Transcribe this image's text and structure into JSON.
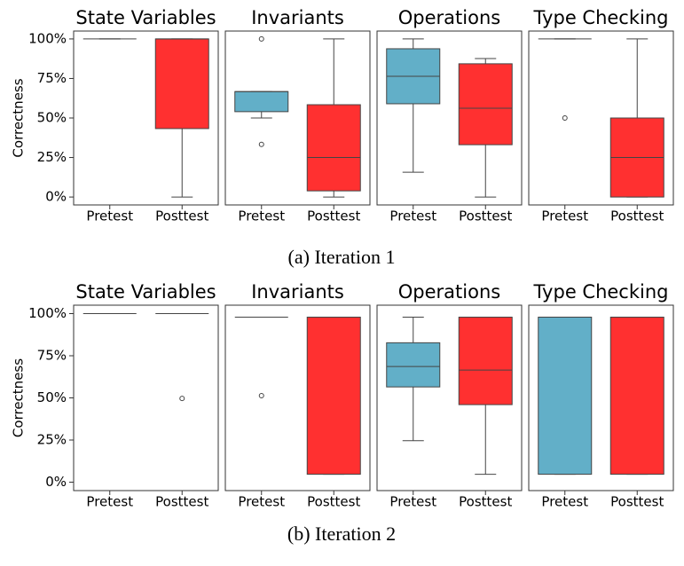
{
  "chart_data": [
    {
      "type": "box",
      "title": "State Variables",
      "ylabel": "Correctness",
      "categories": [
        "Pretest",
        "Posttest"
      ],
      "ylim": [
        -5,
        105
      ],
      "yticks": [
        {
          "value": 0,
          "label": "0%"
        },
        {
          "value": 25,
          "label": "25%"
        },
        {
          "value": 50,
          "label": "50%"
        },
        {
          "value": 75,
          "label": "75%"
        },
        {
          "value": 100,
          "label": "100%"
        }
      ],
      "boxes": [
        {
          "color": "#62afc8",
          "min": 100,
          "q1": 100,
          "median": 100,
          "q3": 100,
          "max": 100,
          "outliers": []
        },
        {
          "color": "#ff3030",
          "min": 0,
          "q1": 43.3,
          "median": 100,
          "q3": 100,
          "max": 100,
          "outliers": []
        }
      ]
    },
    {
      "type": "box",
      "title": "Invariants",
      "categories": [
        "Pretest",
        "Posttest"
      ],
      "ylim": [
        -5,
        105
      ],
      "boxes": [
        {
          "color": "#62afc8",
          "min": 50,
          "q1": 54,
          "median": 66.7,
          "q3": 66.7,
          "max": 66.7,
          "outliers": [
            100,
            33.3
          ]
        },
        {
          "color": "#ff3030",
          "min": 0,
          "q1": 3.9,
          "median": 25,
          "q3": 58.4,
          "max": 100,
          "outliers": []
        }
      ]
    },
    {
      "type": "box",
      "title": "Operations",
      "categories": [
        "Pretest",
        "Posttest"
      ],
      "ylim": [
        -5,
        105
      ],
      "boxes": [
        {
          "color": "#62afc8",
          "min": 15.7,
          "q1": 59,
          "median": 76.4,
          "q3": 93.8,
          "max": 100,
          "outliers": []
        },
        {
          "color": "#ff3030",
          "min": 0,
          "q1": 33.1,
          "median": 56.2,
          "q3": 84.3,
          "max": 87.6,
          "outliers": []
        }
      ]
    },
    {
      "type": "box",
      "title": "Type Checking",
      "categories": [
        "Pretest",
        "Posttest"
      ],
      "ylim": [
        -5,
        105
      ],
      "boxes": [
        {
          "color": "#62afc8",
          "min": 100,
          "q1": 100,
          "median": 100,
          "q3": 100,
          "max": 100,
          "outliers": [
            50
          ]
        },
        {
          "color": "#ff3030",
          "min": 0,
          "q1": 0,
          "median": 25,
          "q3": 50,
          "max": 100,
          "outliers": []
        }
      ]
    },
    {
      "type": "box",
      "title": "State Variables",
      "ylabel": "Correctness",
      "categories": [
        "Pretest",
        "Posttest"
      ],
      "ylim": [
        -5,
        105
      ],
      "yticks": [
        {
          "value": 0,
          "label": "0%"
        },
        {
          "value": 25,
          "label": "25%"
        },
        {
          "value": 50,
          "label": "50%"
        },
        {
          "value": 75,
          "label": "75%"
        },
        {
          "value": 100,
          "label": "100%"
        }
      ],
      "boxes": [
        {
          "color": "#62afc8",
          "min": 100,
          "q1": 100,
          "median": 100,
          "q3": 100,
          "max": 100,
          "outliers": []
        },
        {
          "color": "#ff3030",
          "min": 100,
          "q1": 100,
          "median": 100,
          "q3": 100,
          "max": 100,
          "outliers": [
            49.7
          ]
        }
      ]
    },
    {
      "type": "box",
      "title": "Invariants",
      "categories": [
        "Pretest",
        "Posttest"
      ],
      "ylim": [
        -5,
        105
      ],
      "boxes": [
        {
          "color": "#62afc8",
          "min": 97.9,
          "q1": 97.9,
          "median": 97.9,
          "q3": 97.9,
          "max": 97.9,
          "outliers": [
            51.3
          ]
        },
        {
          "color": "#ff3030",
          "min": 4.7,
          "q1": 4.7,
          "median": 97.9,
          "q3": 97.9,
          "max": 97.9,
          "outliers": []
        }
      ]
    },
    {
      "type": "box",
      "title": "Operations",
      "categories": [
        "Pretest",
        "Posttest"
      ],
      "ylim": [
        -5,
        105
      ],
      "boxes": [
        {
          "color": "#62afc8",
          "min": 24.6,
          "q1": 56.5,
          "median": 68.6,
          "q3": 82.7,
          "max": 97.9,
          "outliers": []
        },
        {
          "color": "#ff3030",
          "min": 4.7,
          "q1": 46,
          "median": 66.5,
          "q3": 97.9,
          "max": 97.9,
          "outliers": []
        }
      ]
    },
    {
      "type": "box",
      "title": "Type Checking",
      "categories": [
        "Pretest",
        "Posttest"
      ],
      "ylim": [
        -5,
        105
      ],
      "boxes": [
        {
          "color": "#62afc8",
          "min": 4.7,
          "q1": 4.7,
          "median": 97.9,
          "q3": 97.9,
          "max": 97.9,
          "outliers": []
        },
        {
          "color": "#ff3030",
          "min": 4.7,
          "q1": 4.7,
          "median": 97.9,
          "q3": 97.9,
          "max": 97.9,
          "outliers": []
        }
      ]
    }
  ],
  "captions": [
    "(a) Iteration 1",
    "(b) Iteration 2"
  ]
}
